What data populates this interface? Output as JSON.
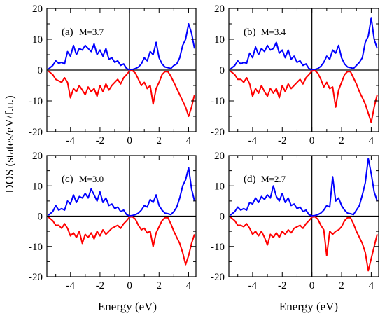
{
  "figure": {
    "ylabel": "DOS (states/eV/f.u.)",
    "xlabel": "Energy (eV)"
  },
  "colors": {
    "spin_up": "#0000ff",
    "spin_down": "#ff0000",
    "axes": "#000000"
  },
  "chart_data": [
    {
      "type": "line",
      "tag": "(a)",
      "label": "M=3.7",
      "xlim": [
        -5.6,
        4.5
      ],
      "ylim": [
        -20,
        20
      ],
      "xticks": [
        -4,
        -2,
        0,
        2,
        4
      ],
      "xtick_labels": [
        "-4",
        "-2",
        "0",
        "2",
        "4"
      ],
      "yticks": [
        -20,
        -10,
        0,
        10,
        20
      ],
      "ytick_labels": [
        "-20",
        "-10",
        "0",
        "10",
        "20"
      ],
      "zero_lines": {
        "x": 0,
        "y": 0
      },
      "series": [
        {
          "key": "up",
          "x": [
            -5.5,
            -5.2,
            -5.0,
            -4.8,
            -4.6,
            -4.4,
            -4.2,
            -4.0,
            -3.8,
            -3.6,
            -3.4,
            -3.2,
            -3.0,
            -2.8,
            -2.6,
            -2.4,
            -2.2,
            -2.0,
            -1.8,
            -1.6,
            -1.4,
            -1.2,
            -1.0,
            -0.8,
            -0.6,
            -0.4,
            -0.2,
            0.0,
            0.2,
            0.4,
            0.6,
            0.8,
            1.0,
            1.2,
            1.4,
            1.6,
            1.8,
            2.0,
            2.2,
            2.4,
            2.6,
            2.8,
            3.0,
            3.2,
            3.4,
            3.6,
            3.8,
            4.0,
            4.2,
            4.4
          ],
          "y": [
            0.3,
            1.5,
            3.0,
            2.2,
            2.5,
            2.0,
            6.0,
            4.5,
            8.0,
            5.0,
            7.0,
            6.5,
            8.0,
            7.0,
            6.0,
            8.5,
            5.0,
            6.5,
            4.5,
            7.0,
            3.5,
            4.0,
            2.5,
            3.0,
            1.5,
            2.0,
            0.5,
            0.1,
            0.2,
            0.5,
            1.0,
            2.0,
            4.0,
            3.0,
            6.0,
            5.0,
            9.0,
            4.0,
            2.0,
            1.0,
            0.8,
            0.5,
            1.5,
            2.0,
            4.0,
            8.0,
            10.0,
            15.0,
            12.0,
            7.0
          ]
        },
        {
          "key": "down",
          "x": [
            -5.5,
            -5.2,
            -5.0,
            -4.8,
            -4.6,
            -4.4,
            -4.2,
            -4.0,
            -3.8,
            -3.6,
            -3.4,
            -3.2,
            -3.0,
            -2.8,
            -2.6,
            -2.4,
            -2.2,
            -2.0,
            -1.8,
            -1.6,
            -1.4,
            -1.2,
            -1.0,
            -0.8,
            -0.6,
            -0.4,
            -0.2,
            0.0,
            0.2,
            0.4,
            0.6,
            0.8,
            1.0,
            1.2,
            1.4,
            1.6,
            1.8,
            2.0,
            2.2,
            2.4,
            2.6,
            2.8,
            3.0,
            3.2,
            3.4,
            3.6,
            3.8,
            4.0,
            4.2,
            4.4
          ],
          "y": [
            -0.3,
            -1.5,
            -3.0,
            -3.5,
            -4.0,
            -2.5,
            -4.0,
            -9.0,
            -6.0,
            -7.0,
            -5.0,
            -6.5,
            -8.0,
            -5.5,
            -7.0,
            -6.0,
            -8.5,
            -5.0,
            -7.0,
            -4.5,
            -6.5,
            -5.0,
            -4.0,
            -3.0,
            -4.5,
            -2.5,
            -1.5,
            -0.3,
            -0.2,
            -1.0,
            -3.0,
            -5.0,
            -4.0,
            -6.0,
            -5.0,
            -11.0,
            -6.0,
            -4.0,
            -1.5,
            -0.5,
            -0.5,
            -2.0,
            -4.0,
            -6.0,
            -8.0,
            -10.0,
            -12.0,
            -15.0,
            -12.0,
            -8.0
          ]
        }
      ]
    },
    {
      "type": "line",
      "tag": "(b)",
      "label": "M=3.4",
      "xlim": [
        -5.6,
        4.5
      ],
      "ylim": [
        -20,
        20
      ],
      "xticks": [
        -4,
        -2,
        0,
        2,
        4
      ],
      "xtick_labels": [
        "-4",
        "-2",
        "0",
        "2",
        "4"
      ],
      "yticks": [
        -20,
        -10,
        0,
        10,
        20
      ],
      "ytick_labels": [
        "-20",
        "-10",
        "0",
        "10",
        "20"
      ],
      "zero_lines": {
        "x": 0,
        "y": 0
      },
      "series": [
        {
          "key": "up",
          "x": [
            -5.5,
            -5.2,
            -5.0,
            -4.8,
            -4.6,
            -4.4,
            -4.2,
            -4.0,
            -3.8,
            -3.6,
            -3.4,
            -3.2,
            -3.0,
            -2.8,
            -2.6,
            -2.4,
            -2.2,
            -2.0,
            -1.8,
            -1.6,
            -1.4,
            -1.2,
            -1.0,
            -0.8,
            -0.6,
            -0.4,
            -0.2,
            0.0,
            0.2,
            0.4,
            0.6,
            0.8,
            1.0,
            1.2,
            1.4,
            1.6,
            1.8,
            2.0,
            2.2,
            2.4,
            2.6,
            2.8,
            3.0,
            3.2,
            3.4,
            3.6,
            3.8,
            4.0,
            4.2,
            4.4
          ],
          "y": [
            0.3,
            1.5,
            3.0,
            2.0,
            2.5,
            2.2,
            5.5,
            4.0,
            7.5,
            5.0,
            7.0,
            6.0,
            8.0,
            6.5,
            7.0,
            9.0,
            5.5,
            6.5,
            4.0,
            6.5,
            3.5,
            4.5,
            2.5,
            3.0,
            1.5,
            2.0,
            0.5,
            0.1,
            0.2,
            0.5,
            1.2,
            2.5,
            4.5,
            3.5,
            6.5,
            5.5,
            8.0,
            4.0,
            2.0,
            1.0,
            0.8,
            0.5,
            1.5,
            2.5,
            4.0,
            9.0,
            11.0,
            17.0,
            10.0,
            7.0
          ]
        },
        {
          "key": "down",
          "x": [
            -5.5,
            -5.2,
            -5.0,
            -4.8,
            -4.6,
            -4.4,
            -4.2,
            -4.0,
            -3.8,
            -3.6,
            -3.4,
            -3.2,
            -3.0,
            -2.8,
            -2.6,
            -2.4,
            -2.2,
            -2.0,
            -1.8,
            -1.6,
            -1.4,
            -1.2,
            -1.0,
            -0.8,
            -0.6,
            -0.4,
            -0.2,
            0.0,
            0.2,
            0.4,
            0.6,
            0.8,
            1.0,
            1.2,
            1.4,
            1.6,
            1.8,
            2.0,
            2.2,
            2.4,
            2.6,
            2.8,
            3.0,
            3.2,
            3.4,
            3.6,
            3.8,
            4.0,
            4.2,
            4.4
          ],
          "y": [
            -0.3,
            -1.5,
            -3.0,
            -3.0,
            -4.0,
            -2.5,
            -4.5,
            -8.5,
            -6.0,
            -7.5,
            -5.0,
            -7.0,
            -8.5,
            -6.0,
            -7.5,
            -6.0,
            -9.0,
            -5.0,
            -7.0,
            -4.5,
            -6.0,
            -5.0,
            -4.0,
            -3.0,
            -4.5,
            -2.5,
            -1.5,
            -0.3,
            -0.2,
            -1.0,
            -3.0,
            -5.5,
            -4.0,
            -6.0,
            -5.5,
            -12.0,
            -6.5,
            -4.0,
            -1.5,
            -0.5,
            -0.5,
            -2.5,
            -4.5,
            -7.0,
            -9.0,
            -11.0,
            -14.0,
            -17.0,
            -12.0,
            -8.0
          ]
        }
      ]
    },
    {
      "type": "line",
      "tag": "(c)",
      "label": "M=3.0",
      "xlim": [
        -5.6,
        4.5
      ],
      "ylim": [
        -20,
        20
      ],
      "xticks": [
        -4,
        -2,
        0,
        2,
        4
      ],
      "xtick_labels": [
        "-4",
        "-2",
        "0",
        "2",
        "4"
      ],
      "yticks": [
        -20,
        -10,
        0,
        10,
        20
      ],
      "ytick_labels": [
        "-20",
        "-10",
        "0",
        "10",
        "20"
      ],
      "zero_lines": {
        "x": 0,
        "y": 0
      },
      "series": [
        {
          "key": "up",
          "x": [
            -5.5,
            -5.2,
            -5.0,
            -4.8,
            -4.6,
            -4.4,
            -4.2,
            -4.0,
            -3.8,
            -3.6,
            -3.4,
            -3.2,
            -3.0,
            -2.8,
            -2.6,
            -2.4,
            -2.2,
            -2.0,
            -1.8,
            -1.6,
            -1.4,
            -1.2,
            -1.0,
            -0.8,
            -0.6,
            -0.4,
            -0.2,
            0.0,
            0.2,
            0.4,
            0.6,
            0.8,
            1.0,
            1.2,
            1.4,
            1.6,
            1.8,
            2.0,
            2.2,
            2.4,
            2.6,
            2.8,
            3.0,
            3.2,
            3.4,
            3.6,
            3.8,
            4.0,
            4.2,
            4.4
          ],
          "y": [
            0.3,
            1.5,
            3.5,
            2.0,
            2.5,
            2.0,
            5.0,
            4.0,
            7.0,
            4.5,
            6.5,
            6.0,
            7.5,
            6.0,
            9.0,
            7.0,
            5.0,
            8.0,
            4.5,
            6.0,
            3.5,
            4.0,
            2.5,
            3.0,
            1.5,
            2.0,
            0.5,
            0.1,
            0.2,
            0.5,
            1.0,
            2.0,
            3.5,
            3.0,
            5.5,
            4.5,
            7.0,
            3.5,
            2.0,
            1.0,
            0.8,
            0.5,
            1.5,
            3.0,
            6.0,
            10.0,
            12.0,
            16.0,
            9.0,
            5.0
          ]
        },
        {
          "key": "down",
          "x": [
            -5.5,
            -5.2,
            -5.0,
            -4.8,
            -4.6,
            -4.4,
            -4.2,
            -4.0,
            -3.8,
            -3.6,
            -3.4,
            -3.2,
            -3.0,
            -2.8,
            -2.6,
            -2.4,
            -2.2,
            -2.0,
            -1.8,
            -1.6,
            -1.4,
            -1.2,
            -1.0,
            -0.8,
            -0.6,
            -0.4,
            -0.2,
            0.0,
            0.2,
            0.4,
            0.6,
            0.8,
            1.0,
            1.2,
            1.4,
            1.6,
            1.8,
            2.0,
            2.2,
            2.4,
            2.6,
            2.8,
            3.0,
            3.2,
            3.4,
            3.6,
            3.8,
            4.0,
            4.2,
            4.4
          ],
          "y": [
            -0.3,
            -1.5,
            -3.0,
            -3.0,
            -4.0,
            -2.5,
            -4.0,
            -6.5,
            -5.5,
            -7.0,
            -5.0,
            -9.0,
            -6.0,
            -7.0,
            -5.5,
            -7.5,
            -5.0,
            -6.5,
            -4.5,
            -6.0,
            -5.0,
            -4.0,
            -3.5,
            -3.0,
            -4.0,
            -2.5,
            -1.5,
            -0.3,
            -0.2,
            -1.0,
            -3.0,
            -4.5,
            -4.0,
            -5.5,
            -5.0,
            -10.0,
            -5.5,
            -3.5,
            -1.5,
            -0.5,
            -0.5,
            -2.5,
            -5.0,
            -7.0,
            -9.0,
            -12.0,
            -16.0,
            -13.0,
            -9.0,
            -6.0
          ]
        }
      ]
    },
    {
      "type": "line",
      "tag": "(d)",
      "label": "M=2.7",
      "xlim": [
        -5.6,
        4.5
      ],
      "ylim": [
        -20,
        20
      ],
      "xticks": [
        -4,
        -2,
        0,
        2,
        4
      ],
      "xtick_labels": [
        "-4",
        "-2",
        "0",
        "2",
        "4"
      ],
      "yticks": [
        -20,
        -10,
        0,
        10,
        20
      ],
      "ytick_labels": [
        "-20",
        "-10",
        "0",
        "10",
        "20"
      ],
      "zero_lines": {
        "x": 0,
        "y": 0
      },
      "series": [
        {
          "key": "up",
          "x": [
            -5.5,
            -5.2,
            -5.0,
            -4.8,
            -4.6,
            -4.4,
            -4.2,
            -4.0,
            -3.8,
            -3.6,
            -3.4,
            -3.2,
            -3.0,
            -2.8,
            -2.6,
            -2.4,
            -2.2,
            -2.0,
            -1.8,
            -1.6,
            -1.4,
            -1.2,
            -1.0,
            -0.8,
            -0.6,
            -0.4,
            -0.2,
            0.0,
            0.2,
            0.4,
            0.6,
            0.8,
            1.0,
            1.2,
            1.4,
            1.6,
            1.8,
            2.0,
            2.2,
            2.4,
            2.6,
            2.8,
            3.0,
            3.2,
            3.4,
            3.6,
            3.8,
            4.0,
            4.2,
            4.4
          ],
          "y": [
            0.3,
            1.5,
            3.0,
            2.0,
            2.5,
            2.0,
            4.5,
            4.0,
            6.0,
            4.5,
            6.5,
            5.5,
            7.0,
            6.0,
            10.0,
            6.5,
            5.0,
            7.5,
            4.5,
            6.0,
            3.5,
            4.0,
            2.5,
            3.0,
            1.5,
            2.0,
            0.5,
            0.1,
            0.2,
            0.5,
            1.0,
            2.0,
            3.5,
            3.0,
            13.0,
            5.0,
            6.0,
            3.5,
            2.0,
            1.0,
            0.8,
            0.5,
            2.0,
            3.5,
            7.0,
            11.0,
            19.0,
            14.0,
            8.0,
            5.0
          ]
        },
        {
          "key": "down",
          "x": [
            -5.5,
            -5.2,
            -5.0,
            -4.8,
            -4.6,
            -4.4,
            -4.2,
            -4.0,
            -3.8,
            -3.6,
            -3.4,
            -3.2,
            -3.0,
            -2.8,
            -2.6,
            -2.4,
            -2.2,
            -2.0,
            -1.8,
            -1.6,
            -1.4,
            -1.2,
            -1.0,
            -0.8,
            -0.6,
            -0.4,
            -0.2,
            0.0,
            0.2,
            0.4,
            0.6,
            0.8,
            1.0,
            1.2,
            1.4,
            1.6,
            1.8,
            2.0,
            2.2,
            2.4,
            2.6,
            2.8,
            3.0,
            3.2,
            3.4,
            3.6,
            3.8,
            4.0,
            4.2,
            4.4
          ],
          "y": [
            -0.3,
            -1.5,
            -3.0,
            -3.0,
            -3.5,
            -2.5,
            -4.0,
            -6.0,
            -5.0,
            -6.5,
            -5.0,
            -7.0,
            -9.5,
            -6.0,
            -7.0,
            -5.5,
            -7.0,
            -5.0,
            -6.0,
            -4.5,
            -5.5,
            -4.0,
            -3.5,
            -3.0,
            -4.0,
            -2.5,
            -1.5,
            -0.3,
            -0.2,
            -1.0,
            -3.0,
            -4.5,
            -13.0,
            -5.0,
            -6.0,
            -5.0,
            -4.5,
            -3.5,
            -1.5,
            -0.5,
            -0.5,
            -2.5,
            -5.0,
            -7.0,
            -9.0,
            -12.0,
            -18.0,
            -14.0,
            -10.0,
            -6.0
          ]
        }
      ]
    }
  ]
}
